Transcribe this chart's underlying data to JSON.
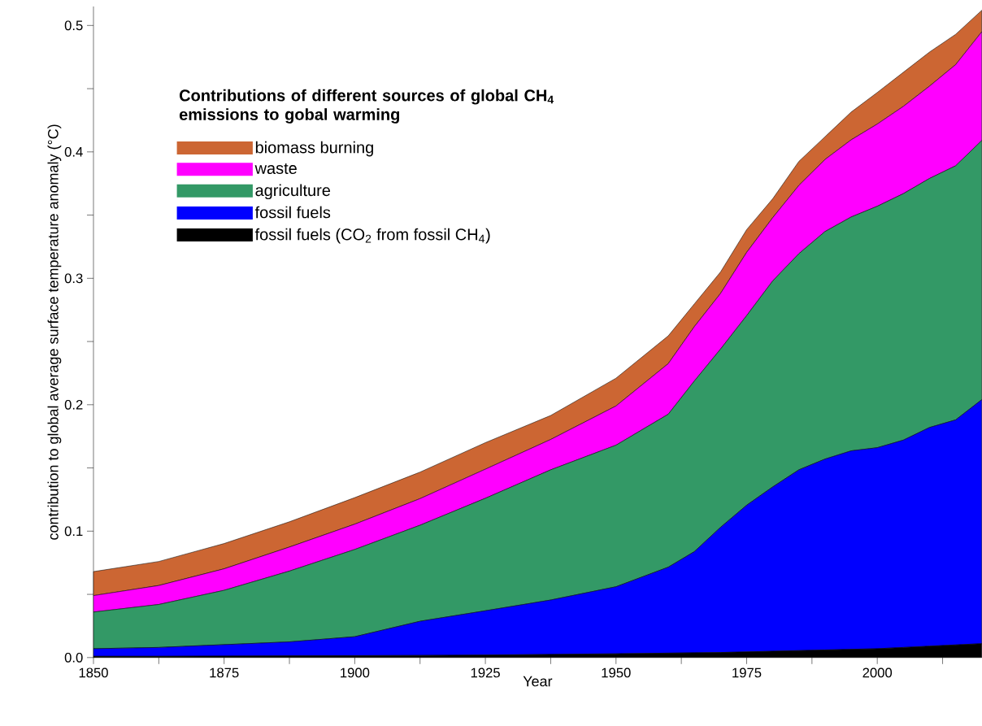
{
  "chart_data": {
    "type": "area",
    "stacked": true,
    "legend_title": "**Contributions of different sources of global CH$_{4}$ emissions to gobal warming**",
    "xlabel": "Year",
    "ylabel": "contribution to global average surface temperature anomaly (°C)",
    "x": [
      1850,
      1862.5,
      1875,
      1887.5,
      1900,
      1912.5,
      1925,
      1937.5,
      1950,
      1960,
      1965,
      1970,
      1975,
      1980,
      1985,
      1990,
      1995,
      2000,
      2005,
      2010,
      2015,
      2020
    ],
    "series": [
      {
        "name": "fossil fuels (CO$_{2}$ from fossil CH$_{4}$)",
        "color": "#000000",
        "values": [
          0.001,
          0.001,
          0.0012,
          0.0014,
          0.0015,
          0.0017,
          0.002,
          0.0025,
          0.003,
          0.0035,
          0.0038,
          0.004,
          0.0045,
          0.005,
          0.0055,
          0.006,
          0.0065,
          0.007,
          0.008,
          0.009,
          0.01,
          0.011
        ]
      },
      {
        "name": "fossil fuels",
        "color": "#0000ff",
        "values": [
          0.006,
          0.007,
          0.009,
          0.011,
          0.015,
          0.027,
          0.035,
          0.043,
          0.053,
          0.068,
          0.08,
          0.099,
          0.116,
          0.13,
          0.143,
          0.151,
          0.157,
          0.159,
          0.164,
          0.173,
          0.178,
          0.193
        ]
      },
      {
        "name": "agriculture",
        "color": "#339966",
        "values": [
          0.029,
          0.034,
          0.043,
          0.056,
          0.069,
          0.076,
          0.089,
          0.103,
          0.112,
          0.121,
          0.135,
          0.141,
          0.15,
          0.163,
          0.171,
          0.18,
          0.185,
          0.191,
          0.195,
          0.197,
          0.201,
          0.205
        ]
      },
      {
        "name": "waste",
        "color": "#ff00ff",
        "values": [
          0.013,
          0.015,
          0.017,
          0.019,
          0.02,
          0.021,
          0.023,
          0.024,
          0.031,
          0.04,
          0.043,
          0.044,
          0.05,
          0.05,
          0.054,
          0.057,
          0.061,
          0.065,
          0.069,
          0.073,
          0.08,
          0.086
        ]
      },
      {
        "name": "biomass burning",
        "color": "#cc6633",
        "values": [
          0.019,
          0.019,
          0.02,
          0.02,
          0.021,
          0.021,
          0.021,
          0.019,
          0.022,
          0.022,
          0.018,
          0.017,
          0.018,
          0.015,
          0.019,
          0.018,
          0.022,
          0.025,
          0.027,
          0.027,
          0.024,
          0.017
        ]
      }
    ],
    "xlim": [
      1850,
      2020
    ],
    "xticks": [
      1850,
      {
        "value": 1862.5,
        "label": null
      },
      1875,
      {
        "value": 1887.5,
        "label": null
      },
      1900,
      {
        "value": 1912.5,
        "label": null
      },
      1925,
      {
        "value": 1937.5,
        "label": null
      },
      1950,
      {
        "value": 1962.5,
        "label": null
      },
      1975,
      {
        "value": 1987.5,
        "label": null
      },
      2000,
      {
        "value": 2012.5,
        "label": null
      }
    ],
    "ylim": [
      0,
      0.515
    ],
    "yticks": [
      {
        "value": 0,
        "label": "0.0"
      },
      {
        "value": 0.05,
        "label": null
      },
      {
        "value": 0.1,
        "label": "0.1"
      },
      {
        "value": 0.15,
        "label": null
      },
      {
        "value": 0.2,
        "label": "0.2"
      },
      {
        "value": 0.25,
        "label": null
      },
      {
        "value": 0.3,
        "label": "0.3"
      },
      {
        "value": 0.35,
        "label": null
      },
      {
        "value": 0.4,
        "label": "0.4"
      },
      {
        "value": 0.45,
        "label": null
      },
      {
        "value": 0.5,
        "label": "0.5"
      }
    ],
    "legend": "top left",
    "grid": false
  }
}
